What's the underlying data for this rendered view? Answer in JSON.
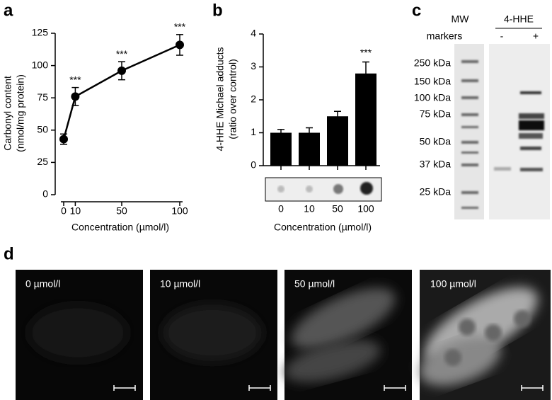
{
  "chart_data": [
    {
      "type": "line",
      "panel": "a",
      "ylabel": [
        "Carbonyl content",
        "(nmol/mg protein)"
      ],
      "xlabel": "Concentration (µmol/l)",
      "x": [
        0,
        10,
        50,
        100
      ],
      "values": [
        43,
        76,
        96,
        116
      ],
      "errors": [
        4,
        7,
        7,
        8
      ],
      "significance": [
        null,
        "***",
        "***",
        "***"
      ],
      "color": "#000000",
      "xlim": [
        0,
        100
      ],
      "xticks": [
        0,
        10,
        50,
        100
      ],
      "ylim": [
        0,
        125
      ],
      "yticks": [
        0,
        25,
        50,
        75,
        100,
        125
      ]
    },
    {
      "type": "bar",
      "panel": "b",
      "ylabel": [
        "4-HHE Michael adducts",
        "(ratio over control)"
      ],
      "xlabel": "Concentration (µmol/l)",
      "categories": [
        "0",
        "10",
        "50",
        "100"
      ],
      "values": [
        1.0,
        1.0,
        1.5,
        2.8
      ],
      "errors": [
        0.1,
        0.15,
        0.15,
        0.35
      ],
      "significance": [
        null,
        null,
        null,
        "***"
      ],
      "color": "#000000",
      "ylim": [
        0,
        4
      ],
      "yticks": [
        0,
        1,
        2,
        3,
        4
      ]
    }
  ],
  "blot": {
    "panel": "c",
    "mw_header": [
      "MW",
      "markers"
    ],
    "sample_header": "4-HHE",
    "lanes": [
      "-",
      "+"
    ],
    "mw_labels": [
      "250 kDa",
      "150 kDa",
      "100 kDa",
      "75 kDa",
      "50 kDa",
      "37 kDa",
      "25 kDa"
    ]
  },
  "micrographs": {
    "panel": "d",
    "labels": [
      "0 µmol/l",
      "10 µmol/l",
      "50 µmol/l",
      "100 µmol/l"
    ]
  }
}
